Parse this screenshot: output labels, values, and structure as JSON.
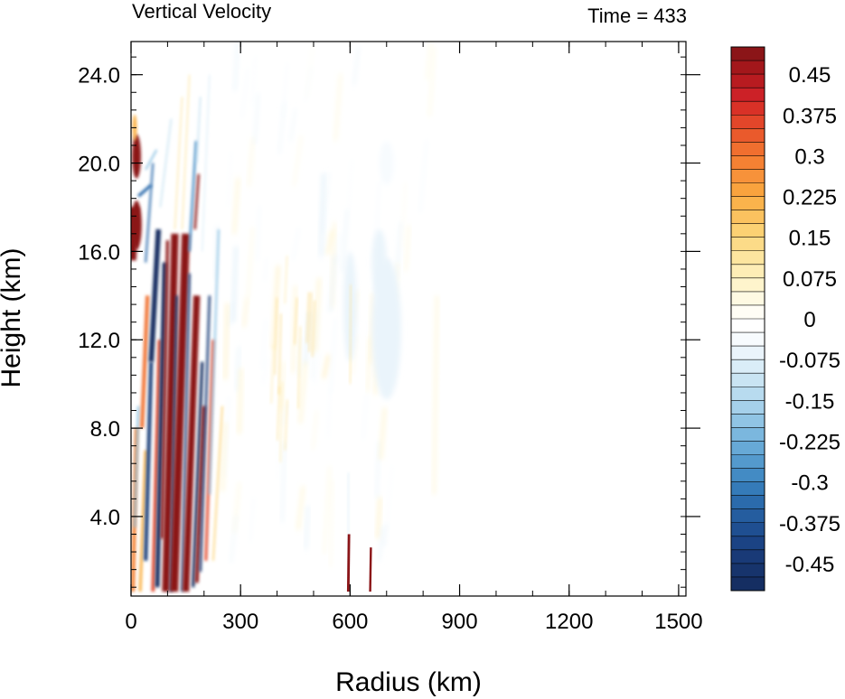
{
  "chart_data": {
    "type": "heatmap",
    "title_left": "Vertical Velocity",
    "title_right": "Time = 433",
    "xlabel": "Radius (km)",
    "ylabel": "Height (km)",
    "xlim": [
      0,
      1520
    ],
    "ylim": [
      0.4,
      25.5
    ],
    "x_ticks": [
      0,
      300,
      600,
      900,
      1200,
      1500
    ],
    "x_tick_labels": [
      "0",
      "300",
      "600",
      "900",
      "1200",
      "1500"
    ],
    "y_ticks": [
      4,
      8,
      12,
      16,
      20,
      24
    ],
    "y_tick_labels": [
      "4.0",
      "8.0",
      "12.0",
      "16.0",
      "20.0",
      "24.0"
    ],
    "colorbar": {
      "levels": [
        -0.5,
        -0.475,
        -0.45,
        -0.425,
        -0.4,
        -0.375,
        -0.35,
        -0.325,
        -0.3,
        -0.275,
        -0.25,
        -0.225,
        -0.2,
        -0.175,
        -0.15,
        -0.125,
        -0.1,
        -0.075,
        -0.05,
        -0.025,
        0,
        0.025,
        0.05,
        0.075,
        0.1,
        0.125,
        0.15,
        0.175,
        0.2,
        0.225,
        0.25,
        0.275,
        0.3,
        0.325,
        0.35,
        0.375,
        0.4,
        0.425,
        0.45,
        0.475,
        0.5
      ],
      "labels": [
        "0.45",
        "0.375",
        "0.3",
        "0.225",
        "0.15",
        "0.075",
        "0",
        "-0.075",
        "-0.15",
        "-0.225",
        "-0.3",
        "-0.375",
        "-0.45"
      ],
      "label_values": [
        0.45,
        0.375,
        0.3,
        0.225,
        0.15,
        0.075,
        0,
        -0.075,
        -0.15,
        -0.225,
        -0.3,
        -0.375,
        -0.45
      ],
      "colors_top_to_bottom": [
        "#8b1518",
        "#a3171b",
        "#b81b20",
        "#cc2127",
        "#d93127",
        "#e3462a",
        "#ea5a2c",
        "#f06f2f",
        "#f58133",
        "#f7923a",
        "#f9a33e",
        "#fab34c",
        "#fbc25f",
        "#fcd173",
        "#fcdb88",
        "#fde59f",
        "#feedb6",
        "#fef4cc",
        "#fef9e2",
        "#fffdf5",
        "#ffffff",
        "#f7fbfe",
        "#eaf4fb",
        "#daedf8",
        "#c9e4f3",
        "#b8dbef",
        "#a5d0ea",
        "#90c4e4",
        "#7bb7de",
        "#67a9d6",
        "#549acd",
        "#438bc4",
        "#357bb9",
        "#2b6bac",
        "#255d9f",
        "#1f4f91",
        "#1b4384",
        "#193a77",
        "#17346c",
        "#152e62"
      ]
    },
    "features": [
      {
        "desc": "inner eyewall updraft",
        "x_range": [
          90,
          200
        ],
        "z_range": [
          0.5,
          16.8
        ],
        "w_peak": 0.5
      },
      {
        "desc": "core downdraft bands",
        "x_range": [
          20,
          240
        ],
        "z_range": [
          0.5,
          18
        ],
        "w_peak": -0.5
      },
      {
        "desc": "outflow updraft near axis",
        "x_range": [
          0,
          30
        ],
        "z_range": [
          15.5,
          21.5
        ],
        "w_peak": 0.5
      },
      {
        "desc": "narrow surface updrafts",
        "x_values": [
          595,
          655
        ],
        "z_range": [
          0.5,
          3.2
        ],
        "w_peak": 0.5
      },
      {
        "desc": "weak descent outer region",
        "x_range": [
          300,
          760
        ],
        "z_range": [
          9,
          15.5
        ],
        "w_peak": -0.08
      }
    ]
  }
}
